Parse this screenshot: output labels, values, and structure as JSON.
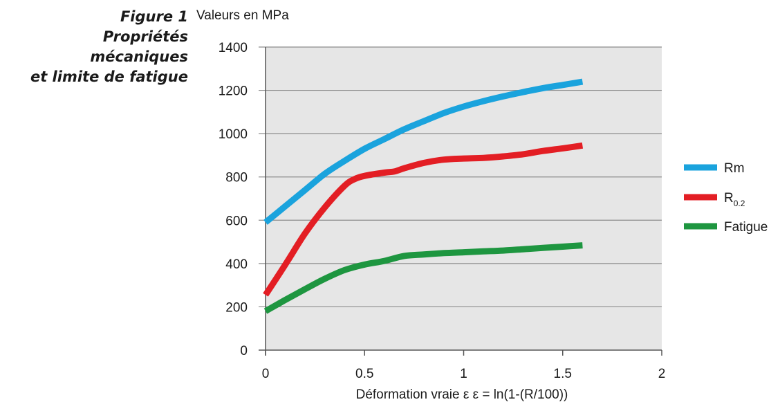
{
  "caption": {
    "figure": "Figure 1",
    "line1": "Propriétés mécaniques",
    "line2": "et limite de fatigue"
  },
  "units_label": "Valeurs en MPa",
  "chart_data": {
    "type": "line",
    "xlabel": "Déformation vraie ε  ε = ln(1-(R/100))",
    "ylabel": "Valeurs en MPa",
    "xlim": [
      0,
      2
    ],
    "ylim": [
      0,
      1400
    ],
    "xticks": [
      0,
      0.5,
      1,
      1.5,
      2
    ],
    "xtick_labels": [
      "0",
      "0.5",
      "1",
      "1.5",
      "2"
    ],
    "yticks": [
      0,
      200,
      400,
      600,
      800,
      1000,
      1200,
      1400
    ],
    "ytick_labels": [
      "0",
      "200",
      "400",
      "600",
      "800",
      "1000",
      "1200",
      "1400"
    ],
    "grid": "horizontal",
    "legend_position": "right",
    "series": [
      {
        "name": "Rm",
        "color": "#1aa3dd",
        "x": [
          0,
          0.1,
          0.2,
          0.3,
          0.4,
          0.5,
          0.6,
          0.7,
          0.8,
          0.9,
          1.0,
          1.1,
          1.2,
          1.3,
          1.4,
          1.5,
          1.6
        ],
        "y": [
          590,
          665,
          740,
          815,
          875,
          930,
          975,
          1020,
          1058,
          1095,
          1125,
          1150,
          1172,
          1192,
          1210,
          1225,
          1240
        ]
      },
      {
        "name": "R",
        "sub": "0.2",
        "color": "#e31e24",
        "x": [
          0,
          0.1,
          0.2,
          0.3,
          0.4,
          0.45,
          0.5,
          0.6,
          0.65,
          0.7,
          0.8,
          0.9,
          1.0,
          1.1,
          1.2,
          1.3,
          1.4,
          1.5,
          1.6
        ],
        "y": [
          255,
          395,
          540,
          660,
          760,
          790,
          805,
          820,
          825,
          840,
          865,
          880,
          885,
          888,
          895,
          905,
          920,
          932,
          945
        ]
      },
      {
        "name": "Fatigue",
        "color": "#1e9640",
        "x": [
          0,
          0.1,
          0.2,
          0.3,
          0.4,
          0.5,
          0.6,
          0.7,
          0.8,
          0.9,
          1.0,
          1.1,
          1.2,
          1.3,
          1.4,
          1.5,
          1.6
        ],
        "y": [
          180,
          232,
          282,
          330,
          370,
          395,
          412,
          435,
          442,
          448,
          452,
          456,
          460,
          466,
          472,
          478,
          484
        ]
      }
    ]
  }
}
